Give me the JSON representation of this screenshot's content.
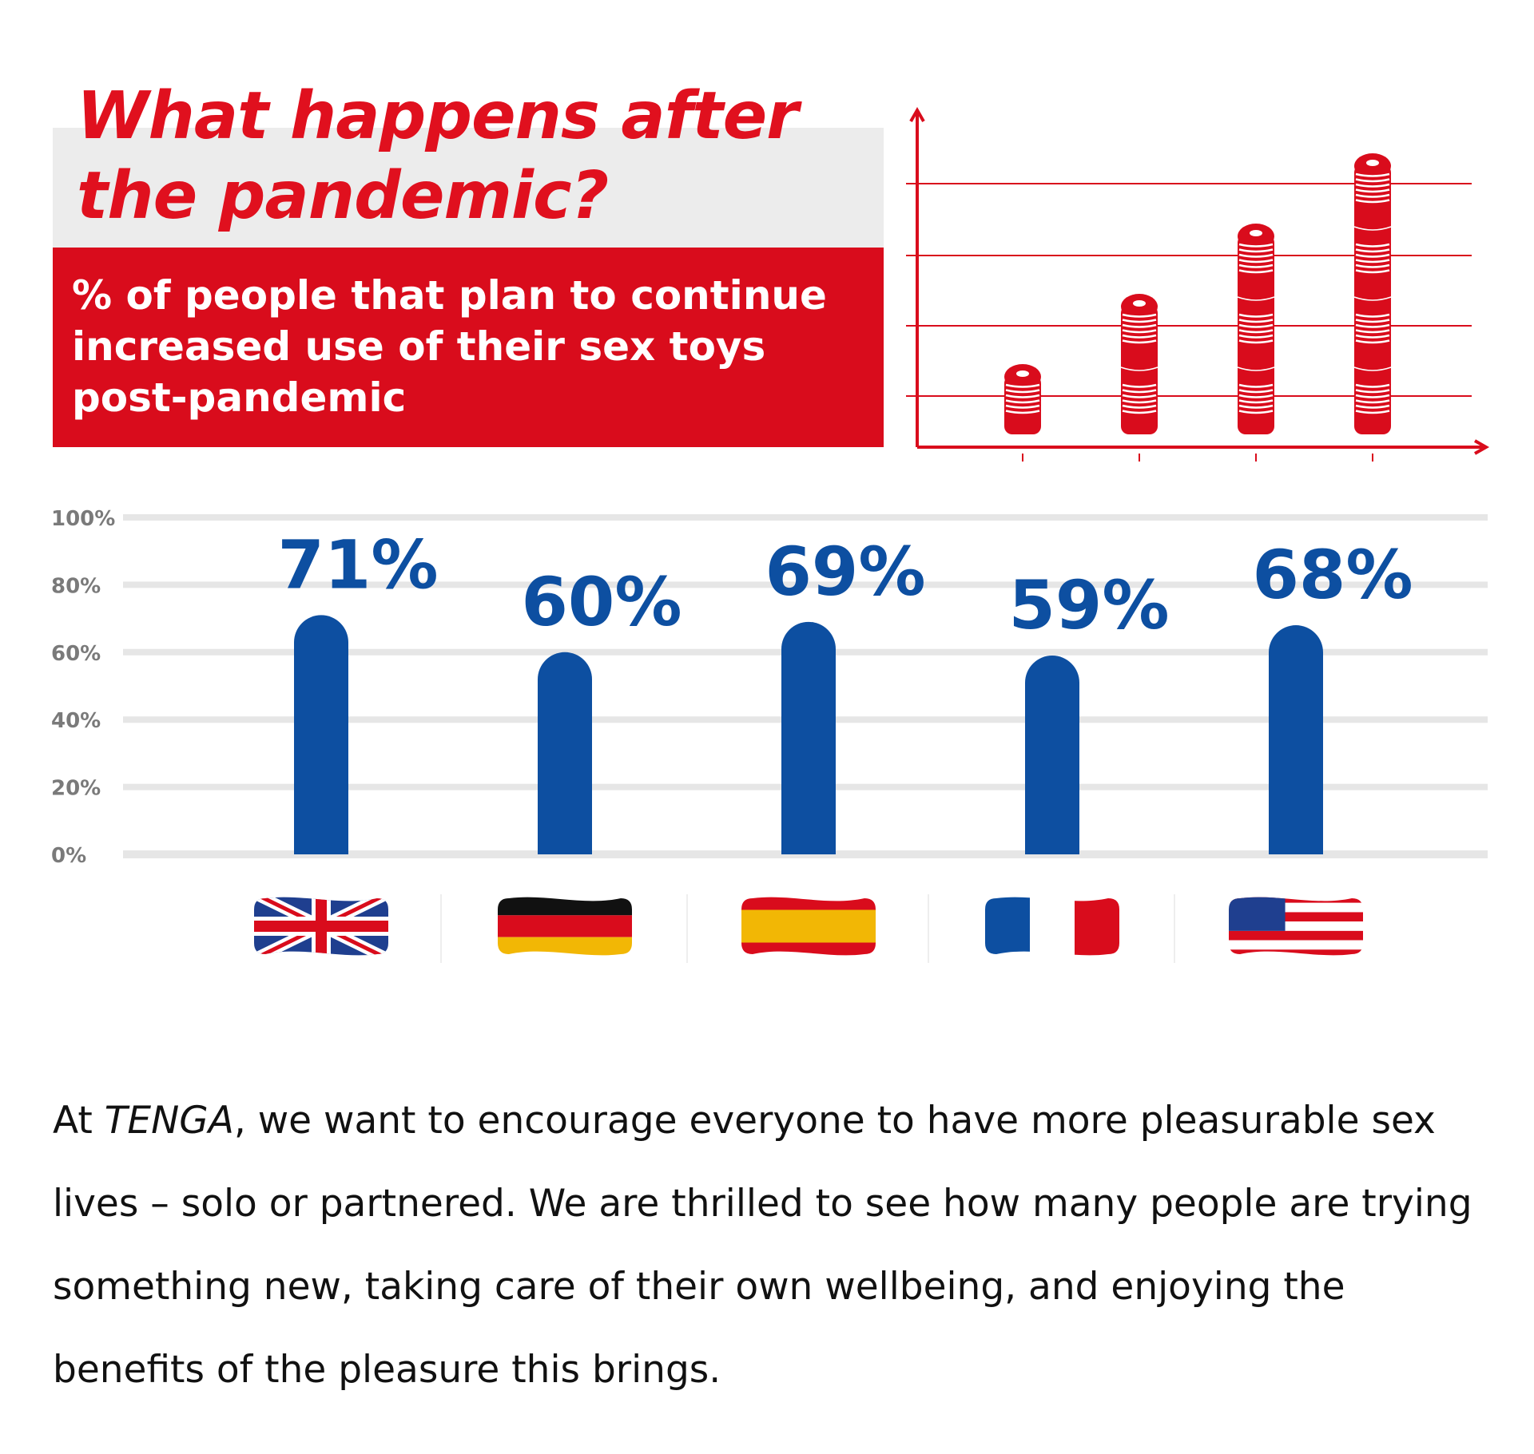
{
  "header": {
    "title_line1": "What happens after",
    "title_line2": "the pandemic?",
    "subtitle_line1": "% of people that plan to continue",
    "subtitle_line2": "increased use of their sex toys",
    "subtitle_line3": "post-pandemic"
  },
  "colors": {
    "brand_red": "#d90c1c",
    "bar_blue": "#0d4fa1",
    "grid_gray": "#e6e6e6",
    "axis_label_gray": "#7a7a7a"
  },
  "decorative_chart": {
    "stack_heights": [
      1,
      2,
      3,
      4
    ]
  },
  "chart_data": {
    "type": "bar",
    "categories": [
      "UK",
      "Germany",
      "Spain",
      "France",
      "USA"
    ],
    "values": [
      71,
      60,
      69,
      59,
      68
    ],
    "data_labels": [
      "71%",
      "60%",
      "69%",
      "59%",
      "68%"
    ],
    "y_ticks": [
      "0%",
      "20%",
      "40%",
      "60%",
      "80%",
      "100%"
    ],
    "ylim": [
      0,
      100
    ],
    "grid": true,
    "category_icons": [
      "uk-flag-icon",
      "germany-flag-icon",
      "spain-flag-icon",
      "france-flag-icon",
      "usa-flag-icon"
    ]
  },
  "footer": {
    "text_before": "At ",
    "brand": "TENGA",
    "text_after": ", we want to encourage everyone to have more pleasurable sex lives – solo or partnered. We are thrilled to see how many people are trying something new, taking care of their own wellbeing, and enjoying the benefits of the pleasure this brings."
  }
}
